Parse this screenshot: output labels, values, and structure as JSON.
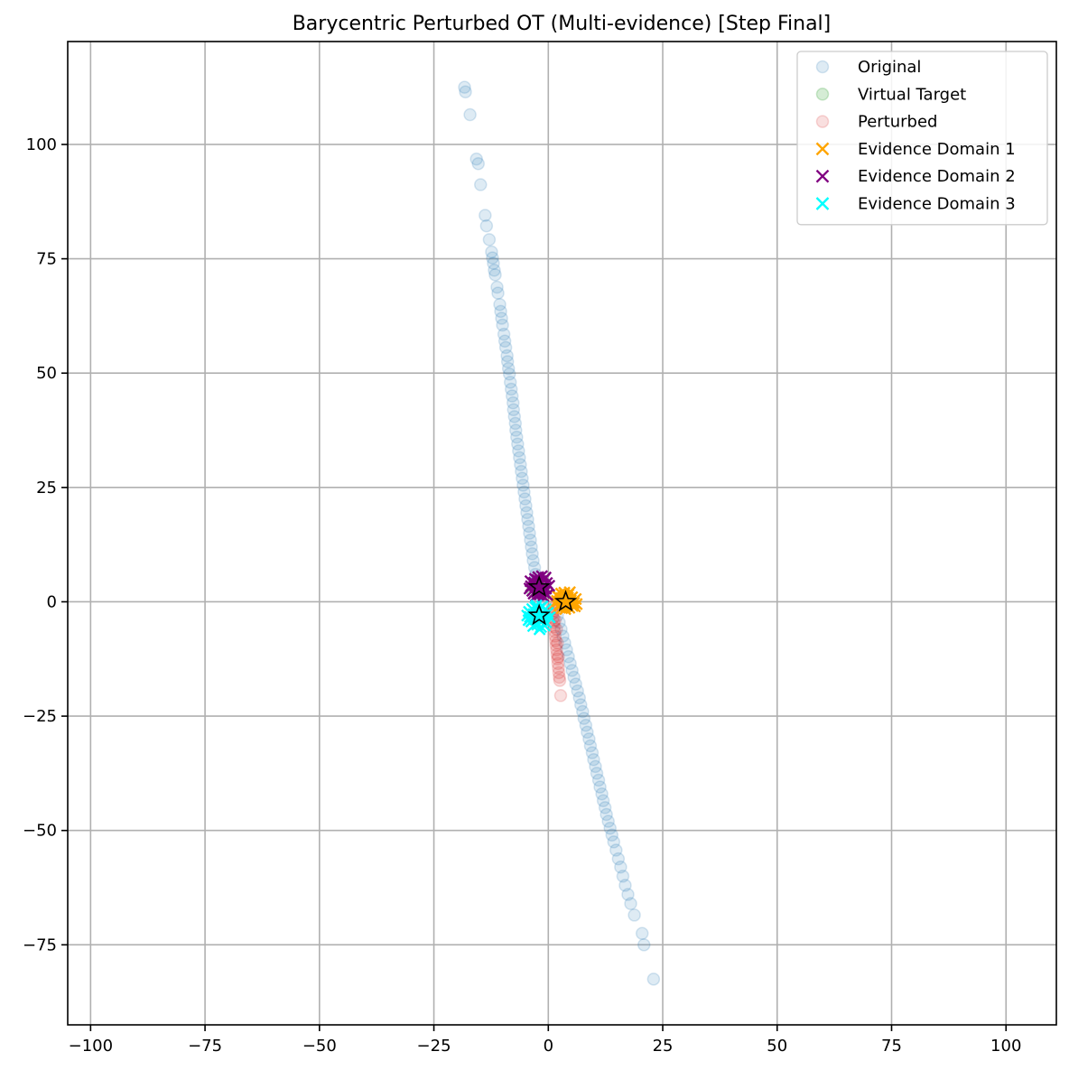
{
  "chart_data": {
    "type": "scatter",
    "title": "Barycentric Perturbed OT (Multi-evidence) [Step Final]",
    "xlabel": "",
    "ylabel": "",
    "xlim": [
      -105,
      111
    ],
    "ylim": [
      -92.5,
      122.5
    ],
    "grid": true,
    "legend_position": "top-right",
    "x_ticks": [
      -100,
      -75,
      -50,
      -25,
      0,
      25,
      50,
      75,
      100
    ],
    "y_ticks": [
      -75,
      -50,
      -25,
      0,
      25,
      50,
      75,
      100
    ],
    "series": [
      {
        "name": "Original",
        "marker": "circle",
        "color": "#1f77b4",
        "alpha": 0.15,
        "points": [
          [
            -18.3,
            112.5
          ],
          [
            -18.1,
            111.5
          ],
          [
            -17.1,
            106.5
          ],
          [
            -15.7,
            96.8
          ],
          [
            -15.3,
            95.8
          ],
          [
            -14.8,
            91.2
          ],
          [
            -13.8,
            84.5
          ],
          [
            -13.5,
            82.2
          ],
          [
            -12.9,
            79.2
          ],
          [
            -12.4,
            76.5
          ],
          [
            -12.2,
            75.2
          ],
          [
            -12.0,
            74.0
          ],
          [
            -11.8,
            72.5
          ],
          [
            -11.6,
            71.5
          ],
          [
            -11.2,
            68.8
          ],
          [
            -11.0,
            67.5
          ],
          [
            -10.6,
            65.0
          ],
          [
            -10.4,
            63.5
          ],
          [
            -10.2,
            62.0
          ],
          [
            -10.0,
            60.5
          ],
          [
            -9.7,
            58.5
          ],
          [
            -9.5,
            57.0
          ],
          [
            -9.3,
            55.6
          ],
          [
            -9.0,
            53.8
          ],
          [
            -8.9,
            52.5
          ],
          [
            -8.7,
            51.0
          ],
          [
            -8.5,
            49.8
          ],
          [
            -8.3,
            48.0
          ],
          [
            -8.1,
            46.5
          ],
          [
            -7.9,
            45.0
          ],
          [
            -7.7,
            43.5
          ],
          [
            -7.6,
            42.0
          ],
          [
            -7.4,
            40.5
          ],
          [
            -7.2,
            39.0
          ],
          [
            -7.1,
            37.5
          ],
          [
            -6.9,
            36.0
          ],
          [
            -6.7,
            34.5
          ],
          [
            -6.5,
            33.0
          ],
          [
            -6.3,
            31.5
          ],
          [
            -6.1,
            30.0
          ],
          [
            -5.9,
            28.5
          ],
          [
            -5.7,
            27.0
          ],
          [
            -5.5,
            25.5
          ],
          [
            -5.3,
            24.0
          ],
          [
            -5.1,
            22.5
          ],
          [
            -4.9,
            21.0
          ],
          [
            -4.7,
            19.5
          ],
          [
            -4.5,
            18.0
          ],
          [
            -4.3,
            16.5
          ],
          [
            -4.1,
            15.0
          ],
          [
            -3.9,
            13.5
          ],
          [
            -3.7,
            12.0
          ],
          [
            -3.5,
            10.5
          ],
          [
            -3.3,
            9.0
          ],
          [
            -3.0,
            7.5
          ],
          [
            -2.8,
            6.0
          ],
          [
            -2.6,
            4.5
          ],
          [
            -2.3,
            3.0
          ],
          [
            -2.1,
            1.5
          ],
          [
            -1.8,
            0.0
          ],
          [
            2.0,
            -3.0
          ],
          [
            2.4,
            -4.5
          ],
          [
            2.8,
            -6.0
          ],
          [
            3.2,
            -7.5
          ],
          [
            3.6,
            -9.0
          ],
          [
            4.0,
            -10.5
          ],
          [
            4.4,
            -12.0
          ],
          [
            4.8,
            -13.5
          ],
          [
            5.2,
            -15.0
          ],
          [
            5.6,
            -16.5
          ],
          [
            6.0,
            -18.0
          ],
          [
            6.4,
            -19.5
          ],
          [
            6.8,
            -21.0
          ],
          [
            7.1,
            -22.5
          ],
          [
            7.5,
            -24.0
          ],
          [
            7.8,
            -25.5
          ],
          [
            8.2,
            -27.0
          ],
          [
            8.5,
            -28.5
          ],
          [
            8.9,
            -30.0
          ],
          [
            9.2,
            -31.5
          ],
          [
            9.6,
            -33.0
          ],
          [
            9.9,
            -34.5
          ],
          [
            10.3,
            -36.0
          ],
          [
            10.6,
            -37.5
          ],
          [
            11.0,
            -39.0
          ],
          [
            11.3,
            -40.5
          ],
          [
            11.7,
            -42.0
          ],
          [
            12.0,
            -43.5
          ],
          [
            12.4,
            -45.0
          ],
          [
            12.7,
            -46.5
          ],
          [
            13.1,
            -48.0
          ],
          [
            13.5,
            -49.5
          ],
          [
            13.9,
            -51.0
          ],
          [
            14.3,
            -52.5
          ],
          [
            14.8,
            -54.3
          ],
          [
            15.3,
            -56.2
          ],
          [
            15.8,
            -58.0
          ],
          [
            16.3,
            -60.0
          ],
          [
            16.8,
            -62.0
          ],
          [
            17.4,
            -64.0
          ],
          [
            18.0,
            -66.0
          ],
          [
            18.8,
            -68.5
          ],
          [
            20.5,
            -72.5
          ],
          [
            20.9,
            -75.0
          ],
          [
            23.0,
            -82.5
          ]
        ]
      },
      {
        "name": "Virtual Target",
        "marker": "circle",
        "color": "#2ca02c",
        "alpha": 0.2,
        "points": [
          [
            -3.2,
            3.2
          ],
          [
            -3.5,
            2.5
          ],
          [
            -2.8,
            4.0
          ],
          [
            -0.8,
            2.0
          ],
          [
            -2.6,
            -2.5
          ],
          [
            -1.3,
            -3.5
          ],
          [
            3.2,
            0.5
          ],
          [
            4.2,
            -0.4
          ]
        ]
      },
      {
        "name": "Perturbed",
        "marker": "circle",
        "color": "#d62728",
        "alpha": 0.15,
        "points": [
          [
            0.8,
            -0.5
          ],
          [
            0.9,
            -1.5
          ],
          [
            1.0,
            -2.5
          ],
          [
            1.1,
            -3.5
          ],
          [
            1.2,
            -4.5
          ],
          [
            1.3,
            -5.5
          ],
          [
            1.4,
            -6.5
          ],
          [
            1.5,
            -7.5
          ],
          [
            1.6,
            -8.5
          ],
          [
            1.7,
            -9.5
          ],
          [
            1.8,
            -10.5
          ],
          [
            1.9,
            -11.5
          ],
          [
            2.0,
            -12.5
          ],
          [
            2.1,
            -13.5
          ],
          [
            2.2,
            -14.5
          ],
          [
            2.3,
            -15.5
          ],
          [
            2.4,
            -16.5
          ],
          [
            2.5,
            -17.2
          ],
          [
            2.7,
            -20.5
          ],
          [
            1.2,
            -2.0
          ],
          [
            1.5,
            -4.0
          ],
          [
            1.8,
            -6.0
          ],
          [
            2.0,
            -9.0
          ],
          [
            2.2,
            -12.0
          ]
        ]
      },
      {
        "name": "Evidence Domain 1",
        "marker": "x",
        "color": "#ffa500",
        "alpha": 1,
        "points": [
          [
            2.1,
            1.2
          ],
          [
            2.8,
            1.8
          ],
          [
            3.6,
            1.4
          ],
          [
            4.4,
            1.6
          ],
          [
            5.2,
            1.0
          ],
          [
            1.9,
            0.2
          ],
          [
            2.6,
            -0.5
          ],
          [
            3.3,
            0.4
          ],
          [
            4.1,
            -0.3
          ],
          [
            4.9,
            0.3
          ],
          [
            5.6,
            -0.2
          ],
          [
            2.3,
            -1.1
          ],
          [
            3.0,
            -1.4
          ],
          [
            3.8,
            -1.0
          ],
          [
            4.6,
            -1.3
          ],
          [
            5.3,
            -0.9
          ],
          [
            6.0,
            0.6
          ],
          [
            1.6,
            -0.4
          ],
          [
            3.5,
            2.0
          ],
          [
            4.7,
            2.1
          ],
          [
            2.9,
            0.8
          ],
          [
            4.3,
            0.9
          ],
          [
            3.7,
            -1.6
          ],
          [
            5.8,
            -1.0
          ],
          [
            1.8,
            1.5
          ],
          [
            6.2,
            -0.5
          ]
        ]
      },
      {
        "name": "Evidence Domain 2",
        "marker": "x",
        "color": "#800080",
        "alpha": 1,
        "points": [
          [
            -3.8,
            3.4
          ],
          [
            -3.1,
            4.2
          ],
          [
            -2.4,
            4.8
          ],
          [
            -1.6,
            4.5
          ],
          [
            -0.9,
            4.9
          ],
          [
            -0.3,
            4.1
          ],
          [
            -3.5,
            2.4
          ],
          [
            -2.8,
            3.1
          ],
          [
            -2.0,
            3.8
          ],
          [
            -1.2,
            3.3
          ],
          [
            -0.5,
            2.9
          ],
          [
            -3.2,
            1.8
          ],
          [
            -2.5,
            2.2
          ],
          [
            -1.7,
            2.6
          ],
          [
            -0.9,
            2.0
          ],
          [
            -0.2,
            1.5
          ],
          [
            -2.2,
            5.4
          ],
          [
            -1.4,
            5.6
          ],
          [
            -0.6,
            5.3
          ],
          [
            -3.9,
            4.5
          ],
          [
            -2.7,
            1.3
          ],
          [
            -1.9,
            1.6
          ],
          [
            -1.1,
            1.2
          ],
          [
            -4.1,
            2.9
          ],
          [
            0.2,
            3.5
          ],
          [
            -2.9,
            5.0
          ]
        ]
      },
      {
        "name": "Evidence Domain 3",
        "marker": "x",
        "color": "#00ffff",
        "alpha": 1,
        "points": [
          [
            -4.2,
            -2.2
          ],
          [
            -3.5,
            -1.6
          ],
          [
            -2.8,
            -1.2
          ],
          [
            -2.0,
            -1.5
          ],
          [
            -1.3,
            -1.0
          ],
          [
            -0.6,
            -1.6
          ],
          [
            -4.0,
            -3.3
          ],
          [
            -3.2,
            -2.7
          ],
          [
            -2.4,
            -2.3
          ],
          [
            -1.6,
            -2.7
          ],
          [
            -0.8,
            -2.9
          ],
          [
            -0.1,
            -2.4
          ],
          [
            -3.7,
            -4.3
          ],
          [
            -2.9,
            -3.8
          ],
          [
            -2.1,
            -3.6
          ],
          [
            -1.3,
            -4.0
          ],
          [
            -0.5,
            -4.5
          ],
          [
            -3.3,
            -5.3
          ],
          [
            -2.4,
            -5.0
          ],
          [
            -1.6,
            -5.5
          ],
          [
            -0.8,
            -5.2
          ],
          [
            -4.6,
            -3.0
          ],
          [
            0.3,
            -3.4
          ],
          [
            -2.6,
            -0.8
          ],
          [
            -1.9,
            -6.0
          ],
          [
            -4.3,
            -4.0
          ]
        ]
      }
    ],
    "centroids": [
      {
        "series": "Evidence Domain 1",
        "x": 3.8,
        "y": 0.0
      },
      {
        "series": "Evidence Domain 2",
        "x": -2.0,
        "y": 3.2
      },
      {
        "series": "Evidence Domain 3",
        "x": -2.0,
        "y": -3.0
      }
    ],
    "centroid_marker": "star",
    "colors": {
      "original": "#1f77b4",
      "virtual_target": "#2ca02c",
      "perturbed": "#d62728",
      "evidence_1": "#ffa500",
      "evidence_2": "#800080",
      "evidence_3": "#00ffff"
    }
  }
}
